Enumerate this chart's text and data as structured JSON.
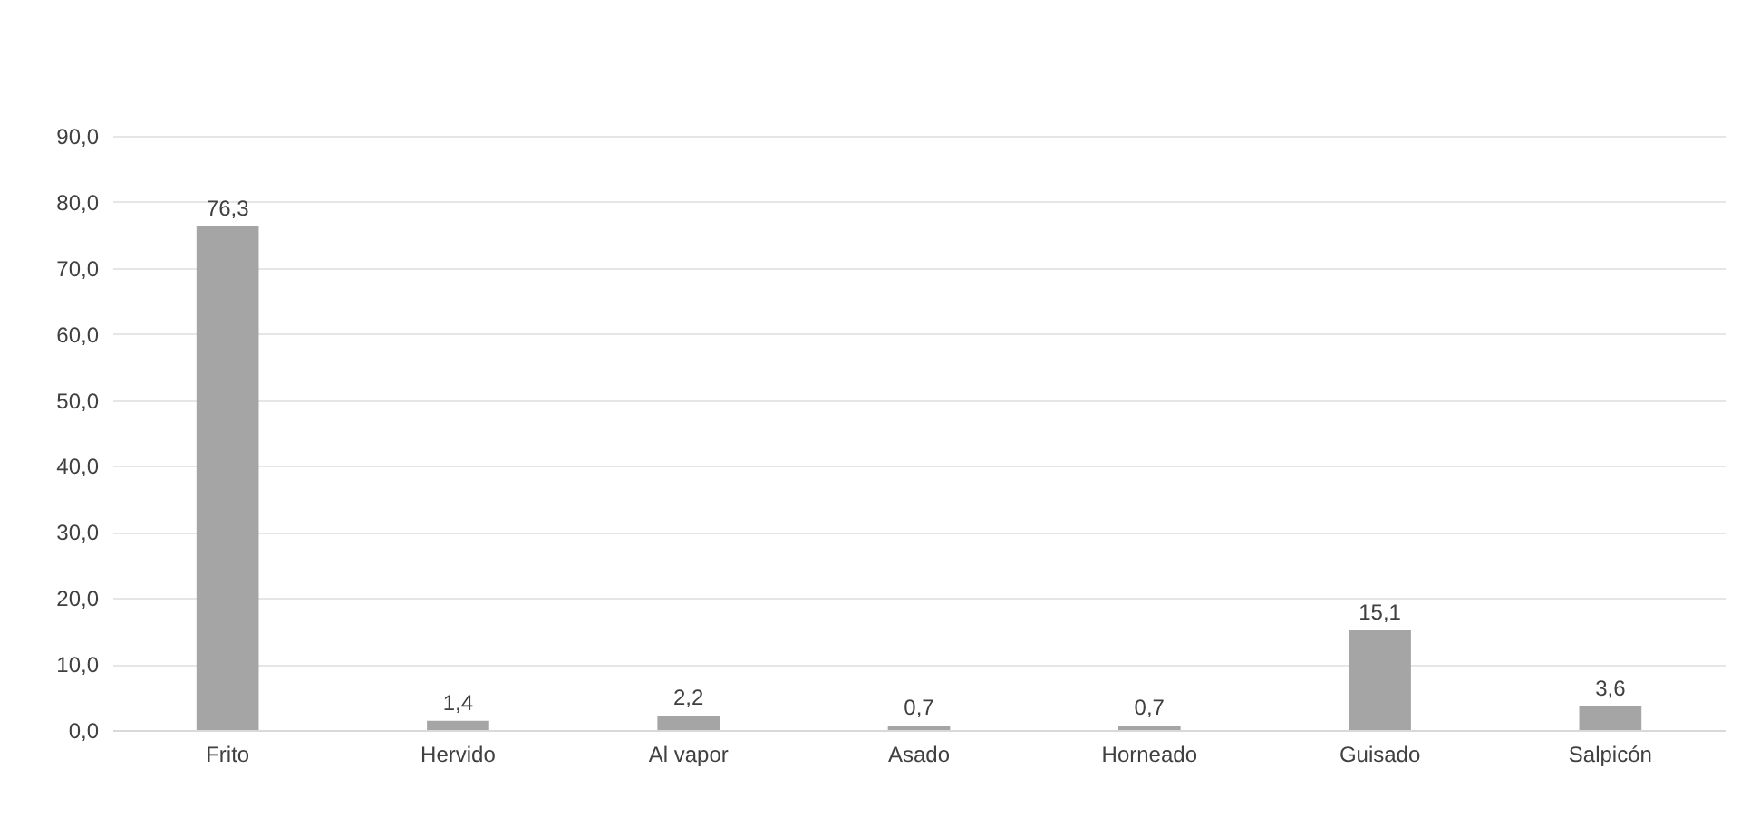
{
  "chart_data": {
    "type": "bar",
    "categories": [
      "Frito",
      "Hervido",
      "Al vapor",
      "Asado",
      "Horneado",
      "Guisado",
      "Salpicón"
    ],
    "values": [
      76.3,
      1.4,
      2.2,
      0.7,
      0.7,
      15.1,
      3.6
    ],
    "value_labels": [
      "76,3",
      "1,4",
      "2,2",
      "0,7",
      "0,7",
      "15,1",
      "3,6"
    ],
    "color": "#a5a5a5",
    "ylim": [
      0,
      90
    ],
    "yticks": [
      {
        "value": 0,
        "label": "0,0"
      },
      {
        "value": 10,
        "label": "10,0"
      },
      {
        "value": 20,
        "label": "20,0"
      },
      {
        "value": 30,
        "label": "30,0"
      },
      {
        "value": 40,
        "label": "40,0"
      },
      {
        "value": 50,
        "label": "50,0"
      },
      {
        "value": 60,
        "label": "60,0"
      },
      {
        "value": 70,
        "label": "70,0"
      },
      {
        "value": 80,
        "label": "80,0"
      },
      {
        "value": 90,
        "label": "90,0"
      }
    ],
    "grid": "y"
  }
}
